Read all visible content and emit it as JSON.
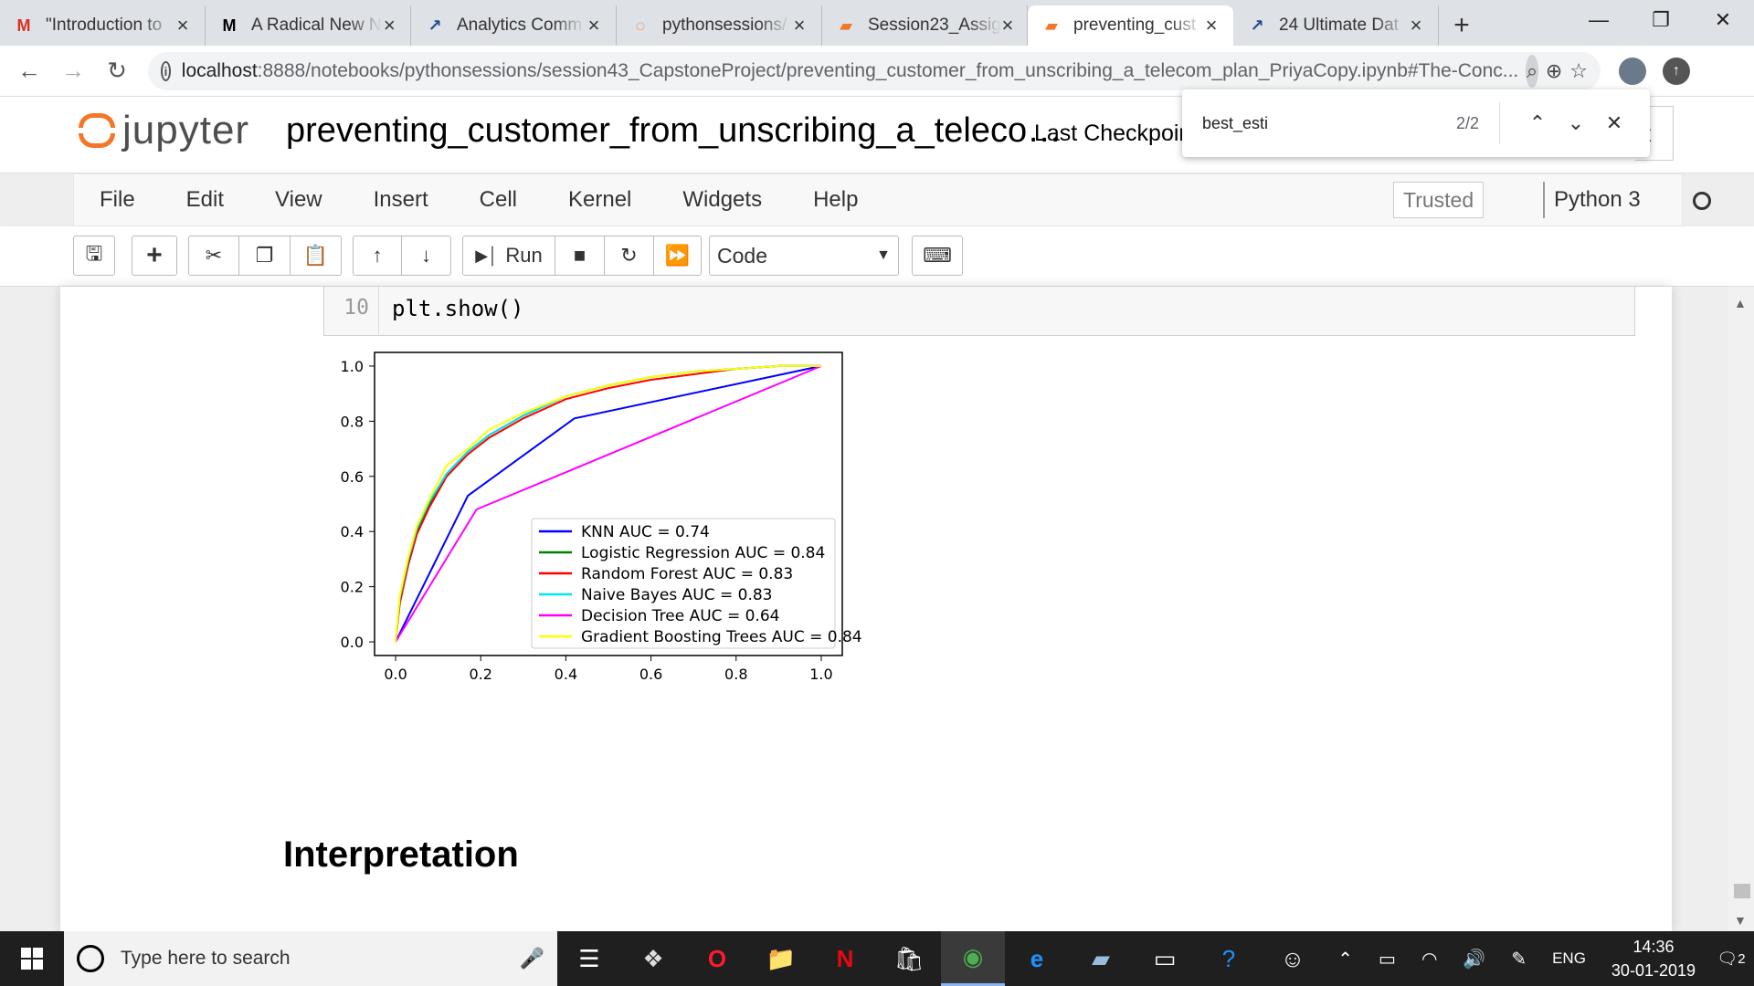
{
  "browser": {
    "tabs": [
      {
        "title": "\"Introduction to",
        "icon": "gmail-icon",
        "glyph": "M",
        "color": "#d93025"
      },
      {
        "title": "A Radical New N",
        "icon": "medium-icon",
        "glyph": "M",
        "color": "#000000"
      },
      {
        "title": "Analytics Comm",
        "icon": "analytics-icon",
        "glyph": "↗",
        "color": "#1a4d8f"
      },
      {
        "title": "pythonsessions/",
        "icon": "jupyter-icon",
        "glyph": "◌",
        "color": "#f37726"
      },
      {
        "title": "Session23_Assig",
        "icon": "notebook-icon",
        "glyph": "▰",
        "color": "#f37726"
      },
      {
        "title": "preventing_cust",
        "icon": "notebook-icon",
        "glyph": "▰",
        "color": "#f37726",
        "active": true
      },
      {
        "title": "24 Ultimate Dat",
        "icon": "analytics-icon",
        "glyph": "↗",
        "color": "#1a4d8f"
      }
    ],
    "new_tab": "+",
    "url_host": "localhost",
    "url_rest": ":8888/notebooks/pythonsessions/session43_CapstoneProject/preventing_customer_from_unscribing_a_telecom_plan_PriyaCopy.ipynb#The-Conc..."
  },
  "find_bar": {
    "query": "best_esti",
    "count": "2/2"
  },
  "jupyter": {
    "logo_text": "jupyter",
    "notebook_title": "preventing_customer_from_unscribing_a_teleco…",
    "checkpoint": "Last Checkpoir",
    "logout_stub": "t",
    "menu": [
      "File",
      "Edit",
      "View",
      "Insert",
      "Cell",
      "Kernel",
      "Widgets",
      "Help"
    ],
    "trusted": "Trusted",
    "kernel": "Python 3",
    "toolbar": {
      "run_label": "Run",
      "cell_type": "Code"
    }
  },
  "cell": {
    "line_number": "10",
    "code": "plt.show()"
  },
  "chart_data": {
    "type": "line",
    "title": "",
    "xlabel": "",
    "ylabel": "",
    "xlim": [
      0.0,
      1.0
    ],
    "ylim": [
      0.0,
      1.0
    ],
    "x_ticks": [
      "0.0",
      "0.2",
      "0.4",
      "0.6",
      "0.8",
      "1.0"
    ],
    "y_ticks": [
      "0.0",
      "0.2",
      "0.4",
      "0.6",
      "0.8",
      "1.0"
    ],
    "legend_position": "lower-right",
    "series": [
      {
        "name": "KNN AUC = 0.74",
        "color": "#0000ff",
        "x": [
          0.0,
          0.17,
          0.42,
          1.0
        ],
        "y": [
          0.0,
          0.53,
          0.81,
          1.0
        ]
      },
      {
        "name": "Logistic Regression AUC = 0.84",
        "color": "#008000",
        "x": [
          0.0,
          0.01,
          0.03,
          0.05,
          0.08,
          0.12,
          0.17,
          0.22,
          0.3,
          0.4,
          0.5,
          0.6,
          0.7,
          0.8,
          0.9,
          1.0
        ],
        "y": [
          0.0,
          0.15,
          0.29,
          0.4,
          0.5,
          0.61,
          0.69,
          0.75,
          0.82,
          0.89,
          0.93,
          0.96,
          0.98,
          0.99,
          1.0,
          1.0
        ]
      },
      {
        "name": "Random Forest AUC = 0.83",
        "color": "#ff0000",
        "x": [
          0.0,
          0.01,
          0.03,
          0.05,
          0.08,
          0.12,
          0.17,
          0.22,
          0.3,
          0.4,
          0.5,
          0.6,
          0.7,
          0.8,
          0.9,
          1.0
        ],
        "y": [
          0.0,
          0.14,
          0.28,
          0.39,
          0.49,
          0.6,
          0.68,
          0.74,
          0.81,
          0.88,
          0.92,
          0.95,
          0.97,
          0.99,
          1.0,
          1.0
        ]
      },
      {
        "name": "Naive Bayes AUC = 0.83",
        "color": "#00e5ee",
        "x": [
          0.0,
          0.01,
          0.03,
          0.05,
          0.08,
          0.12,
          0.17,
          0.22,
          0.3,
          0.4,
          0.5,
          0.6,
          0.7,
          0.8,
          0.9,
          1.0
        ],
        "y": [
          0.0,
          0.16,
          0.3,
          0.41,
          0.51,
          0.61,
          0.69,
          0.75,
          0.82,
          0.89,
          0.93,
          0.96,
          0.98,
          0.99,
          1.0,
          1.0
        ]
      },
      {
        "name": "Decision Tree AUC = 0.64",
        "color": "#ff00ff",
        "x": [
          0.0,
          0.19,
          1.0
        ],
        "y": [
          0.0,
          0.48,
          1.0
        ]
      },
      {
        "name": "Gradient Boosting Trees AUC = 0.84",
        "color": "#ffff00",
        "x": [
          0.0,
          0.01,
          0.03,
          0.05,
          0.08,
          0.12,
          0.17,
          0.22,
          0.3,
          0.4,
          0.5,
          0.6,
          0.7,
          0.8,
          0.9,
          1.0
        ],
        "y": [
          0.0,
          0.17,
          0.31,
          0.42,
          0.52,
          0.64,
          0.7,
          0.77,
          0.83,
          0.89,
          0.93,
          0.96,
          0.98,
          0.99,
          1.0,
          1.0
        ]
      }
    ]
  },
  "markdown": {
    "heading": "Interpretation"
  },
  "taskbar": {
    "search_placeholder": "Type here to search",
    "language": "ENG",
    "time": "14:36",
    "date": "30-01-2019",
    "notifications": "2"
  }
}
